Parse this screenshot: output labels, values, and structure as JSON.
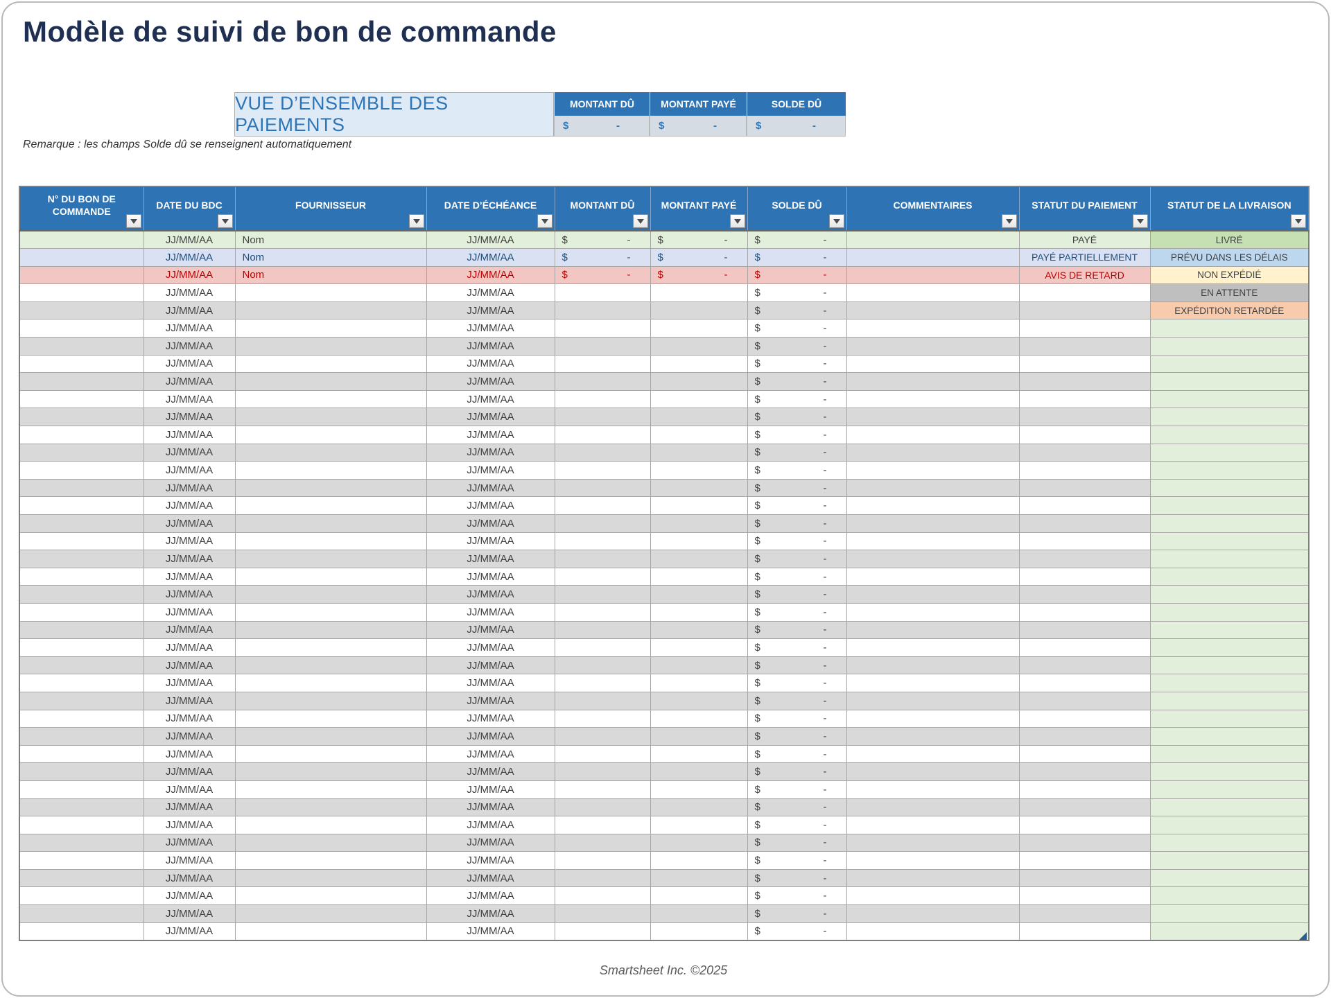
{
  "page": {
    "title": "Modèle de suivi de bon de commande",
    "note": "Remarque : les champs Solde dû se renseignent automatiquement",
    "footer": "Smartsheet Inc. ©2025"
  },
  "overview": {
    "title": "VUE D’ENSEMBLE DES PAIEMENTS",
    "columns": [
      "MONTANT DÛ",
      "MONTANT PAYÉ",
      "SOLDE DÛ"
    ],
    "values": [
      {
        "symbol": "$",
        "value": "-"
      },
      {
        "symbol": "$",
        "value": "-"
      },
      {
        "symbol": "$",
        "value": "-"
      }
    ]
  },
  "table": {
    "columns": [
      "N° DU BON DE COMMANDE",
      "DATE DU BDC",
      "FOURNISSEUR",
      "DATE D’ÉCHÉANCE",
      "MONTANT DÛ",
      "MONTANT PAYÉ",
      "SOLDE DÛ",
      "COMMENTAIRES",
      "STATUT DU PAIEMENT",
      "STATUT DE LA LIVRAISON"
    ],
    "placeholders": {
      "date": "JJ/MM/AA",
      "supplier": "Nom",
      "currency": "$",
      "empty_amount": "-"
    },
    "sample_rows": [
      {
        "theme": "green",
        "date_bdc": "JJ/MM/AA",
        "fournisseur": "Nom",
        "date_echeance": "JJ/MM/AA",
        "montant_du": true,
        "montant_paye": true,
        "solde_du": true,
        "statut_paiement": "PAYÉ",
        "statut_livraison": "LIVRÉ",
        "livraison_theme": "delivered"
      },
      {
        "theme": "blue",
        "date_bdc": "JJ/MM/AA",
        "fournisseur": "Nom",
        "date_echeance": "JJ/MM/AA",
        "montant_du": true,
        "montant_paye": true,
        "solde_du": true,
        "statut_paiement": "PAYÉ PARTIELLEMENT",
        "statut_livraison": "PRÉVU DANS LES DÉLAIS",
        "livraison_theme": "ontime"
      },
      {
        "theme": "red",
        "date_bdc": "JJ/MM/AA",
        "fournisseur": "Nom",
        "date_echeance": "JJ/MM/AA",
        "montant_du": true,
        "montant_paye": true,
        "solde_du": true,
        "statut_paiement": "AVIS DE RETARD",
        "statut_livraison": "NON EXPÉDIÉ",
        "livraison_theme": "notshipped"
      },
      {
        "theme": "white",
        "date_bdc": "JJ/MM/AA",
        "fournisseur": "",
        "date_echeance": "JJ/MM/AA",
        "montant_du": false,
        "montant_paye": false,
        "solde_du": true,
        "statut_paiement": "",
        "statut_livraison": "EN ATTENTE",
        "livraison_theme": "pending"
      },
      {
        "theme": "gray",
        "date_bdc": "JJ/MM/AA",
        "fournisseur": "",
        "date_echeance": "JJ/MM/AA",
        "montant_du": false,
        "montant_paye": false,
        "solde_du": true,
        "statut_paiement": "",
        "statut_livraison": "EXPÉDITION RETARDÉE",
        "livraison_theme": "delayed"
      }
    ],
    "empty_row_count": 35
  },
  "colors": {
    "title_text": "#1E2F52",
    "header_blue": "#2E74B5",
    "overview_label_bg": "#DEEAF6",
    "overview_value_bg": "#D6DCE4",
    "row_green": "#E2EFDA",
    "row_blue": "#D9E1F2",
    "row_red": "#F2C7C3",
    "row_gray": "#D9D9D9",
    "status_delivered": "#C6E0B4",
    "status_on_time": "#BDD7EE",
    "status_not_shipped": "#FFF2CC",
    "status_pending": "#BFBFBF",
    "status_delayed": "#F8CBAD",
    "delivery_column_bg": "#E2EFDA",
    "text_dark": "#404040",
    "text_blue": "#1F4E79",
    "text_red": "#C00000"
  }
}
